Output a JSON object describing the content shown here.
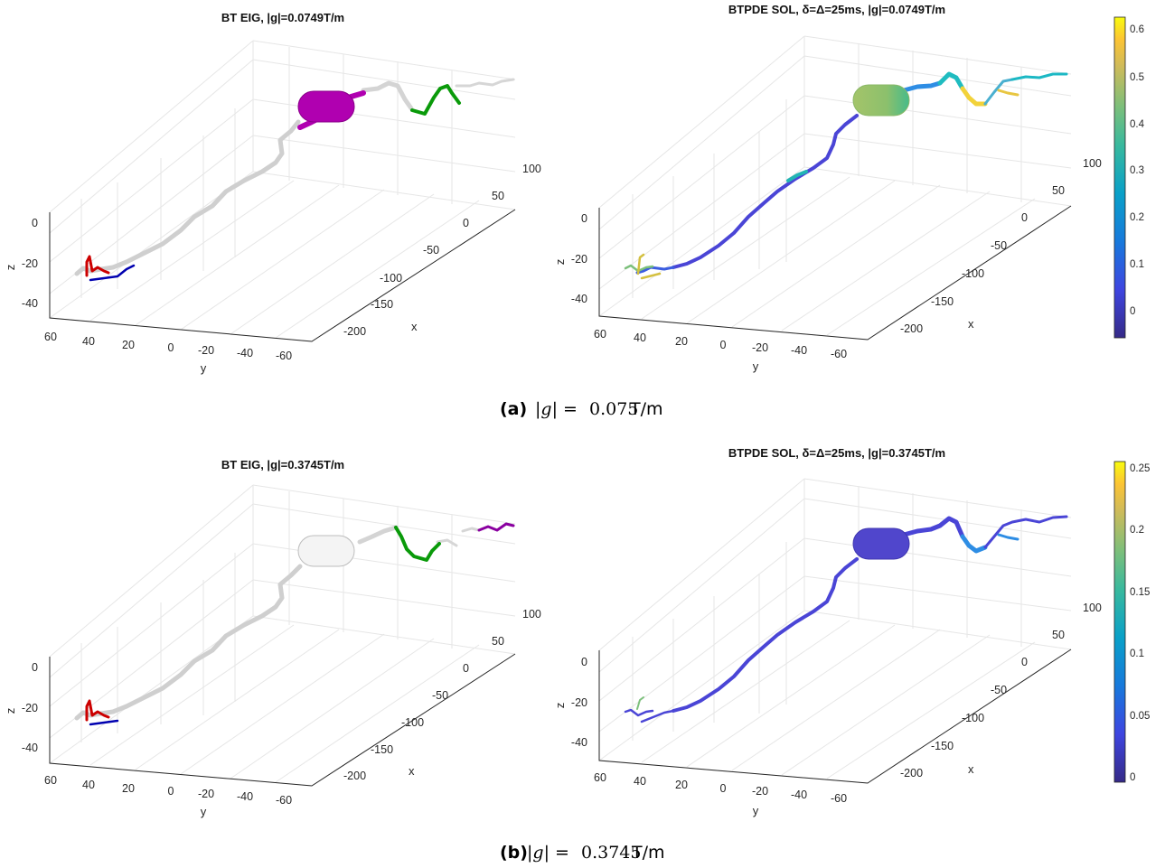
{
  "captions": {
    "a": {
      "tag": "(a)",
      "lhs": "|g| =",
      "value": "0.075",
      "unit": "T/m"
    },
    "b": {
      "tag": "(b)",
      "lhs": "|g| =",
      "value": "0.3745",
      "unit": "T/m"
    }
  },
  "panels": [
    {
      "id": "a-eig",
      "title": "BT EIG, |g|=0.0749T/m",
      "type": "eig",
      "labels": {
        "x": "x",
        "y": "y",
        "z": "z"
      },
      "x_ticks": [
        "100",
        "50",
        "0",
        "-50",
        "-100",
        "-150",
        "-200"
      ],
      "y_ticks": [
        "60",
        "40",
        "20",
        "0",
        "-20",
        "-40",
        "-60"
      ],
      "z_ticks": [
        "0",
        "-20",
        "-40"
      ],
      "soma_color": "#b000b0",
      "segment_colors": {
        "red": "#cc0000",
        "blue": "#0000b0",
        "green": "#0a9a0a",
        "gray": "#c8c8c8",
        "purple": "#8a00a0"
      }
    },
    {
      "id": "a-sol",
      "title": "BTPDE SOL, δ=Δ=25ms, |g|=0.0749T/m",
      "type": "sol",
      "labels": {
        "x": "x",
        "y": "y",
        "z": "z"
      },
      "x_ticks": [
        "100",
        "50",
        "0",
        "-50",
        "-100",
        "-150",
        "-200"
      ],
      "y_ticks": [
        "60",
        "40",
        "20",
        "0",
        "-20",
        "-40",
        "-60"
      ],
      "z_ticks": [
        "0",
        "-20",
        "-40"
      ],
      "colorbar": {
        "ticks": [
          "0.6",
          "0.5",
          "0.4",
          "0.3",
          "0.2",
          "0.1",
          "0"
        ],
        "range": [
          -0.06,
          0.63
        ]
      }
    },
    {
      "id": "b-eig",
      "title": "BT EIG, |g|=0.3745T/m",
      "type": "eig",
      "labels": {
        "x": "x",
        "y": "y",
        "z": "z"
      },
      "x_ticks": [
        "100",
        "50",
        "0",
        "-50",
        "-100",
        "-150",
        "-200"
      ],
      "y_ticks": [
        "60",
        "40",
        "20",
        "0",
        "-20",
        "-40",
        "-60"
      ],
      "z_ticks": [
        "0",
        "-20",
        "-40"
      ]
    },
    {
      "id": "b-sol",
      "title": "BTPDE SOL, δ=Δ=25ms, |g|=0.3745T/m",
      "type": "sol",
      "labels": {
        "x": "x",
        "y": "y",
        "z": "z"
      },
      "x_ticks": [
        "100",
        "50",
        "0",
        "-50",
        "-100",
        "-150",
        "-200"
      ],
      "y_ticks": [
        "60",
        "40",
        "20",
        "0",
        "-20",
        "-40",
        "-60"
      ],
      "z_ticks": [
        "0",
        "-20",
        "-40"
      ],
      "colorbar": {
        "ticks": [
          "0.25",
          "0.2",
          "0.15",
          "0.1",
          "0.05",
          "0"
        ],
        "range": [
          0,
          0.255
        ]
      }
    }
  ]
}
